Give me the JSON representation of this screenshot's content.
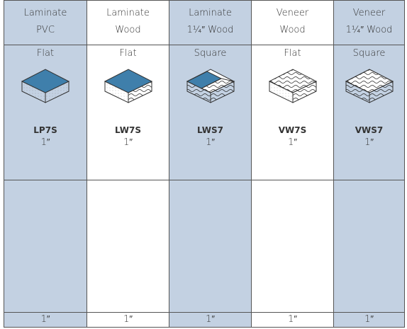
{
  "columns": [
    {
      "header": [
        "Laminate",
        "PVC"
      ],
      "edge": "Flat",
      "code": "LP7S",
      "size": "1″",
      "footer": "1″"
    },
    {
      "header": [
        "Laminate",
        "Wood"
      ],
      "edge": "Flat",
      "code": "LW7S",
      "size": "1″",
      "footer": "1″"
    },
    {
      "header": [
        "Laminate",
        "1¼″ Wood"
      ],
      "edge": "Square",
      "code": "LWS7",
      "size": "1″",
      "footer": "1″"
    },
    {
      "header": [
        "Veneer",
        "Wood"
      ],
      "edge": "Flat",
      "code": "VW7S",
      "size": "1″",
      "footer": "1″"
    },
    {
      "header": [
        "Veneer",
        "1¼″ Wood"
      ],
      "edge": "Square",
      "code": "VWS7",
      "size": "1″",
      "footer": "1″"
    }
  ]
}
